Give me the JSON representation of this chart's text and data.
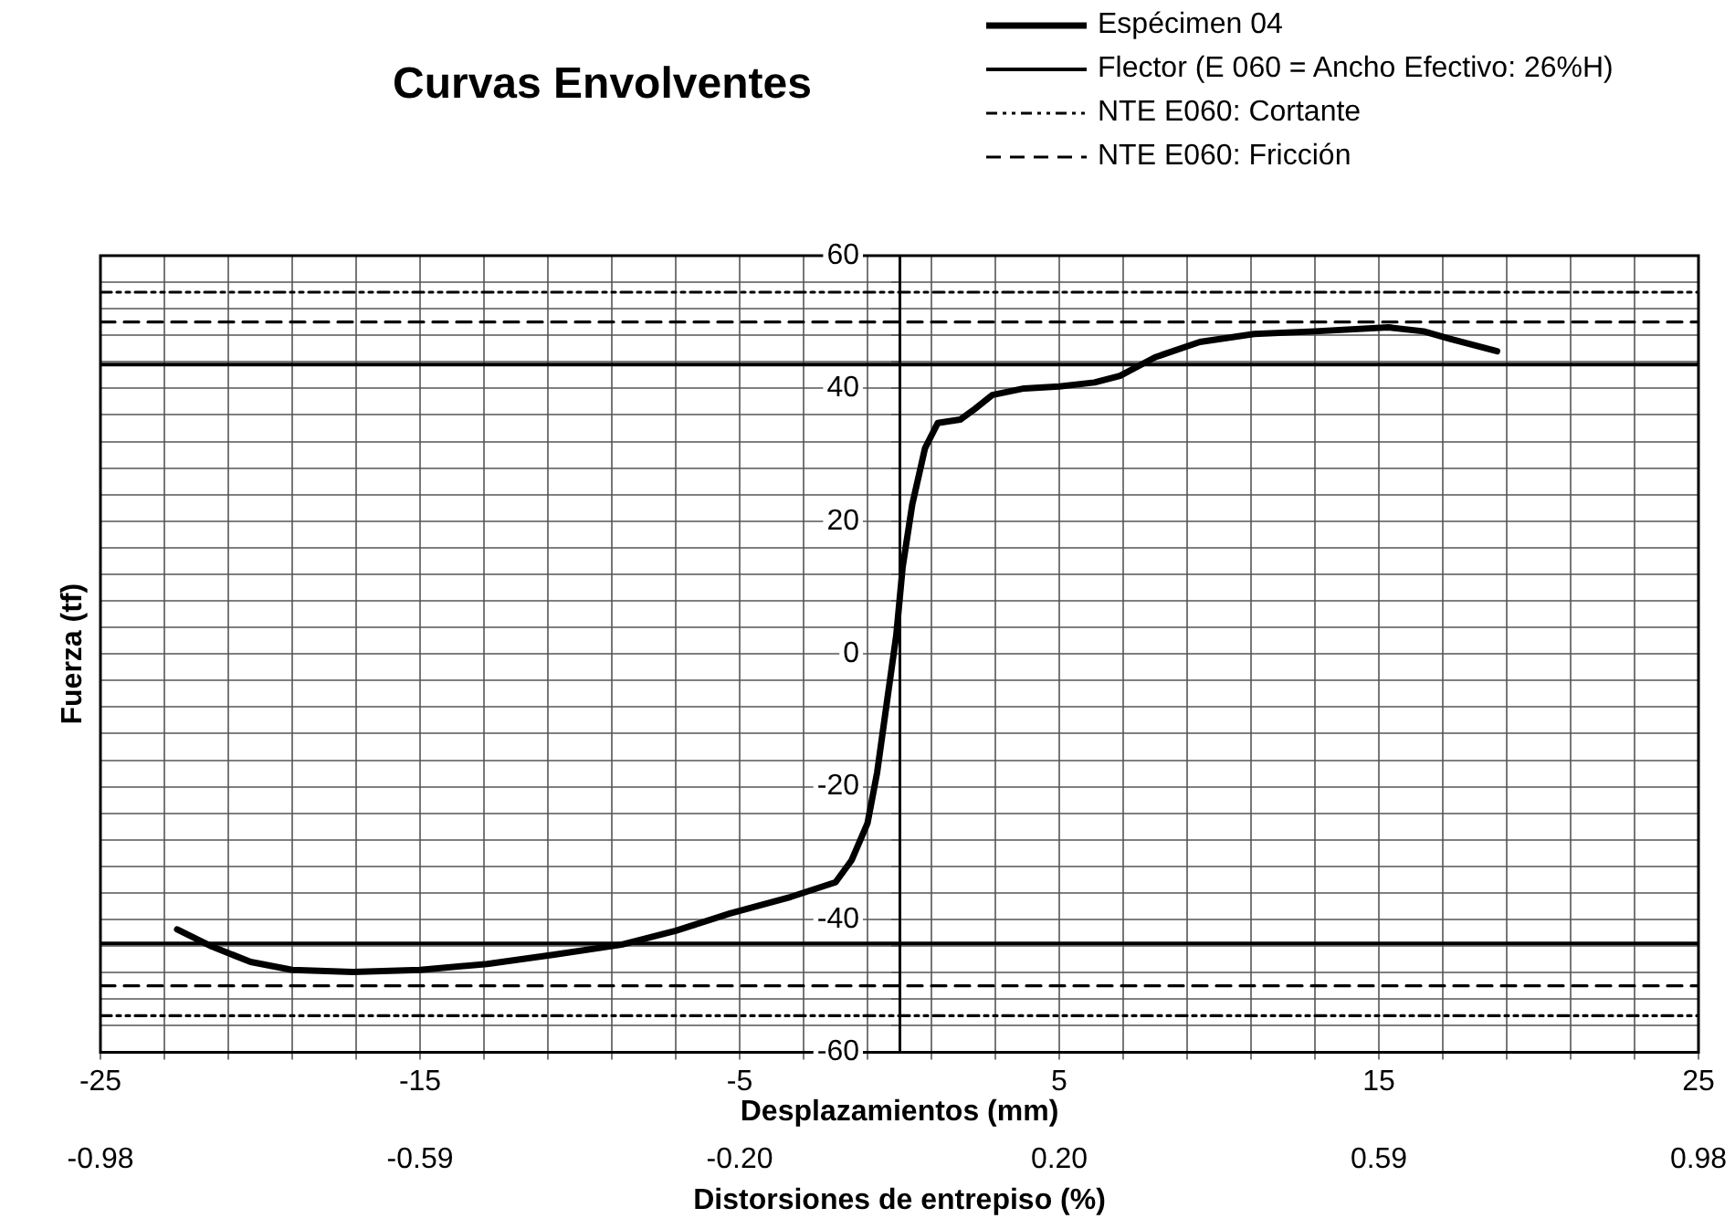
{
  "chart_data": {
    "type": "line",
    "title": "Curvas Envolventes",
    "xlabel": "Desplazamientos (mm)",
    "ylabel": "Fuerza (tf)",
    "x2label": "Distorsiones de entrepiso (%)",
    "xlim": [
      -25,
      25
    ],
    "xticks": [
      -25,
      {
        "value": -23,
        "label": null
      },
      {
        "value": -21,
        "label": null
      },
      {
        "value": -19,
        "label": null
      },
      {
        "value": -17,
        "label": null
      },
      -15,
      {
        "value": -13,
        "label": null
      },
      {
        "value": -11,
        "label": null
      },
      {
        "value": -9,
        "label": null
      },
      {
        "value": -7,
        "label": null
      },
      -5,
      {
        "value": -3,
        "label": null
      },
      {
        "value": -1,
        "label": null
      },
      {
        "value": 1,
        "label": null
      },
      {
        "value": 3,
        "label": null
      },
      5,
      {
        "value": 7,
        "label": null
      },
      {
        "value": 9,
        "label": null
      },
      {
        "value": 11,
        "label": null
      },
      {
        "value": 13,
        "label": null
      },
      15,
      {
        "value": 17,
        "label": null
      },
      {
        "value": 19,
        "label": null
      },
      {
        "value": 21,
        "label": null
      },
      {
        "value": 23,
        "label": null
      },
      25
    ],
    "x2lim": [
      -0.98,
      0.98
    ],
    "x2ticks": [
      -0.98,
      {
        "value": -0.588,
        "label": "-0.59"
      },
      {
        "value": -0.196,
        "label": "-0.20"
      },
      {
        "value": 0.196,
        "label": "0.20"
      },
      {
        "value": 0.588,
        "label": "0.59"
      },
      0.98
    ],
    "ylim": [
      -60,
      60
    ],
    "yticks": [
      -60,
      {
        "value": -56,
        "label": null
      },
      {
        "value": -52,
        "label": null
      },
      {
        "value": -48,
        "label": null
      },
      {
        "value": -44,
        "label": null
      },
      -40,
      {
        "value": -36,
        "label": null
      },
      {
        "value": -32,
        "label": null
      },
      {
        "value": -28,
        "label": null
      },
      {
        "value": -24,
        "label": null
      },
      -20,
      {
        "value": -16,
        "label": null
      },
      {
        "value": -12,
        "label": null
      },
      {
        "value": -8,
        "label": null
      },
      {
        "value": -4,
        "label": null
      },
      0,
      {
        "value": 4,
        "label": null
      },
      {
        "value": 8,
        "label": null
      },
      {
        "value": 12,
        "label": null
      },
      {
        "value": 16,
        "label": null
      },
      20,
      {
        "value": 24,
        "label": null
      },
      {
        "value": 28,
        "label": null
      },
      {
        "value": 32,
        "label": null
      },
      {
        "value": 36,
        "label": null
      },
      40,
      {
        "value": 44,
        "label": null
      },
      {
        "value": 48,
        "label": null
      },
      {
        "value": 52,
        "label": null
      },
      {
        "value": 56,
        "label": null
      },
      60
    ],
    "grid": true,
    "legend": "top right",
    "marker": "none",
    "series": [
      {
        "name": "Espécimen 04",
        "color": "#000000",
        "line_style": "solid",
        "x": [
          -22.6,
          -21.5,
          -20.3,
          -19.0,
          -17.1,
          -15.0,
          -12.9,
          -10.8,
          -8.7,
          -7.0,
          -5.3,
          -3.4,
          -2.0,
          -1.5,
          -1.0,
          -0.7,
          -0.4,
          -0.1,
          0.1,
          0.4,
          0.8,
          1.2,
          1.9,
          2.3,
          2.9,
          3.9,
          5.0,
          6.1,
          6.9,
          8.0,
          9.4,
          11.1,
          13.0,
          15.3,
          16.4,
          17.2,
          18.7
        ],
        "values": [
          -41.5,
          -44.1,
          -46.4,
          -47.6,
          -47.9,
          -47.6,
          -46.7,
          -45.3,
          -43.8,
          -41.7,
          -39.1,
          -36.6,
          -34.4,
          -31.1,
          -25.5,
          -17.9,
          -7.5,
          2.8,
          13.1,
          22.5,
          31.0,
          34.8,
          35.3,
          36.7,
          39.0,
          40.0,
          40.3,
          40.9,
          41.9,
          44.7,
          47.0,
          48.2,
          48.6,
          49.2,
          48.6,
          47.5,
          45.6
        ]
      },
      {
        "name": "Flector (E 060 = Ancho Efectivo: 26%H)",
        "color": "#000000",
        "line_style": "solid",
        "x": [
          -25,
          25
        ],
        "values": [
          43.6,
          43.6
        ]
      },
      {
        "color": "#000000",
        "line_style": "solid",
        "x": [
          -25,
          25
        ],
        "values": [
          -43.6,
          -43.6
        ]
      },
      {
        "name": "NTE E060: Cortante",
        "color": "#000000",
        "line_style": "dotted",
        "x": [
          -25,
          25
        ],
        "values": [
          54.5,
          54.5
        ]
      },
      {
        "color": "#000000",
        "line_style": "dotted",
        "x": [
          -25,
          25
        ],
        "values": [
          -54.5,
          -54.5
        ]
      },
      {
        "name": "NTE E060: Fricción",
        "color": "#000000",
        "line_style": "dashed",
        "x": [
          -25,
          25
        ],
        "values": [
          50,
          50
        ]
      },
      {
        "color": "#000000",
        "line_style": "dashed",
        "x": [
          -25,
          25
        ],
        "values": [
          -50,
          -50
        ]
      }
    ]
  }
}
